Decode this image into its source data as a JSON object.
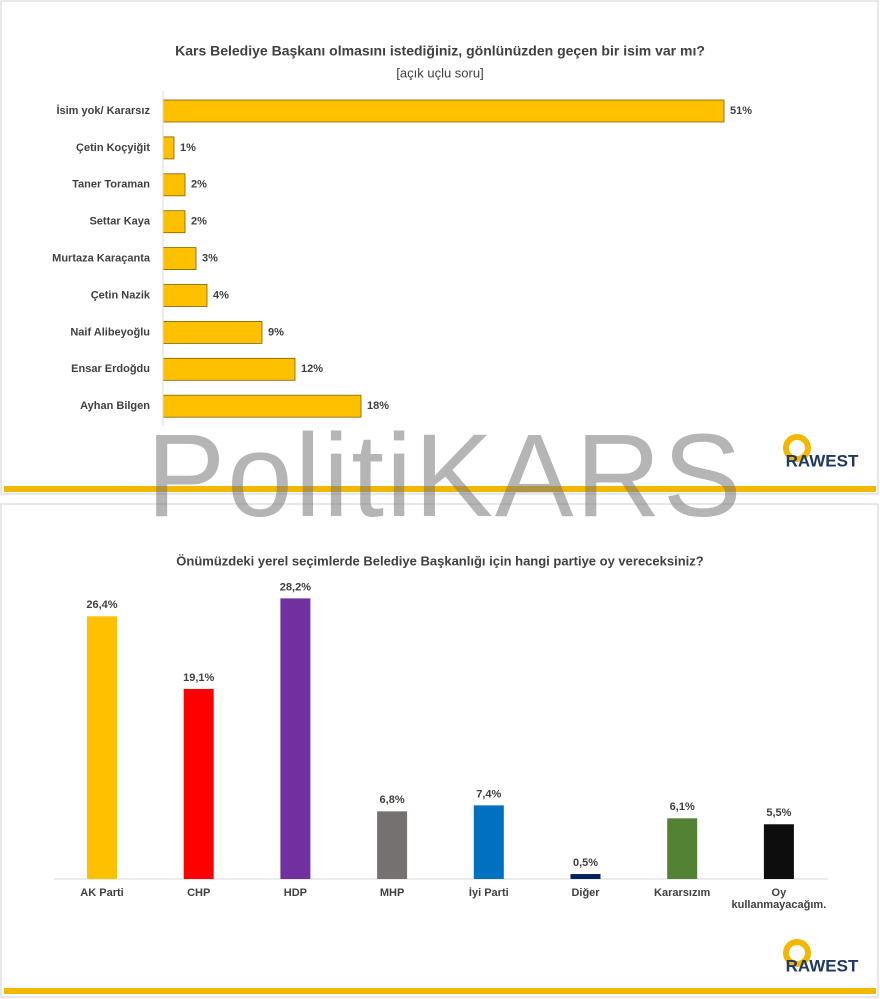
{
  "watermark": "PolitiKARS",
  "logo_text": "RAWEST",
  "chart_data": [
    {
      "type": "hbar",
      "title": "Kars Belediye Başkanı olmasını istediğiniz, gönlünüzden geçen bir isim var mı?",
      "subtitle": "[açık uçlu soru]",
      "categories": [
        "İsim yok/ Kararsız",
        "Çetin Koçyiğit",
        "Taner Toraman",
        "Settar Kaya",
        "Murtaza Karaçanta",
        "Çetin Nazik",
        "Naif Alibeyoğlu",
        "Ensar Erdoğdu",
        "Ayhan Bilgen"
      ],
      "values": [
        51,
        1,
        2,
        2,
        3,
        4,
        9,
        12,
        18
      ],
      "value_labels": [
        "51%",
        "1%",
        "2%",
        "2%",
        "3%",
        "4%",
        "9%",
        "12%",
        "18%"
      ],
      "color": "#FFC000"
    },
    {
      "type": "bar",
      "title": "Önümüzdeki yerel seçimlerde Belediye Başkanlığı için hangi partiye oy vereceksiniz?",
      "categories": [
        "AK Parti",
        "CHP",
        "HDP",
        "MHP",
        "İyi Parti",
        "Diğer",
        "Kararsızım",
        "Oy kullanmayacağım."
      ],
      "values": [
        26.4,
        19.1,
        28.2,
        6.8,
        7.4,
        0.5,
        6.1,
        5.5
      ],
      "value_labels": [
        "26,4%",
        "19,1%",
        "28,2%",
        "6,8%",
        "7,4%",
        "0,5%",
        "6,1%",
        "5,5%"
      ],
      "colors": [
        "#FFC000",
        "#FF0000",
        "#7030A0",
        "#767171",
        "#0070C0",
        "#002060",
        "#548235",
        "#0D0D0D"
      ]
    }
  ]
}
